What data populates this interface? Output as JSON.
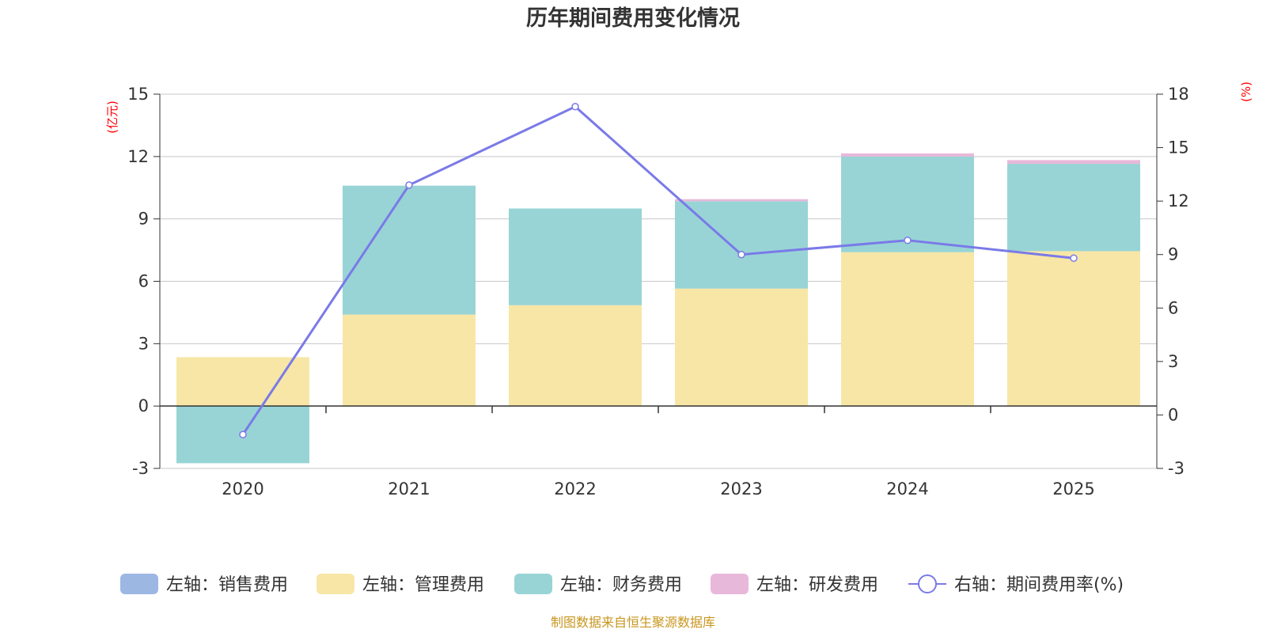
{
  "chart_data": {
    "type": "bar",
    "title": "历年期间费用变化情况",
    "categories": [
      "2020",
      "2021",
      "2022",
      "2023",
      "2024",
      "2025"
    ],
    "stacked": true,
    "left_axis": {
      "unit": "(亿元)",
      "ylim": [
        -3,
        15
      ],
      "ticks": [
        -3,
        0,
        3,
        6,
        9,
        12,
        15
      ]
    },
    "right_axis": {
      "unit": "(%)",
      "ylim": [
        -3,
        18
      ],
      "ticks": [
        -3,
        0,
        3,
        6,
        9,
        12,
        15,
        18
      ]
    },
    "series": [
      {
        "name": "左轴：销售费用",
        "type": "bar",
        "axis": "left",
        "color": "#9db7e3",
        "values": [
          0,
          0,
          0,
          0,
          0,
          0
        ]
      },
      {
        "name": "左轴：管理费用",
        "type": "bar",
        "axis": "left",
        "color": "#f7e6a6",
        "values": [
          2.35,
          4.4,
          4.85,
          5.65,
          7.4,
          7.45
        ]
      },
      {
        "name": "左轴：财务费用",
        "type": "bar",
        "axis": "left",
        "color": "#98d4d5",
        "values": [
          -2.75,
          6.2,
          4.65,
          4.2,
          4.6,
          4.2
        ]
      },
      {
        "name": "左轴：研发费用",
        "type": "bar",
        "axis": "left",
        "color": "#e8b8da",
        "values": [
          0,
          0,
          0,
          0.1,
          0.15,
          0.18
        ]
      },
      {
        "name": "右轴：期间费用率(%)",
        "type": "line",
        "axis": "right",
        "color": "#7a7ae8",
        "values": [
          -1.1,
          12.9,
          17.3,
          9.0,
          9.8,
          8.8
        ]
      }
    ]
  },
  "footer": {
    "source": "制图数据来自恒生聚源数据库"
  }
}
